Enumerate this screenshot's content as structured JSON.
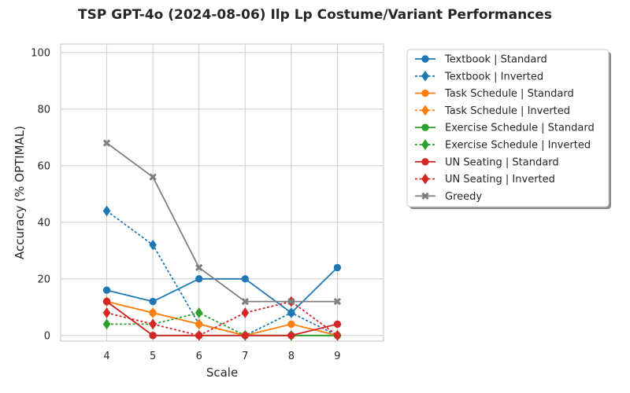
{
  "chart_data": {
    "type": "line",
    "title": "TSP GPT-4o (2024-08-06) Ilp Lp Costume/Variant Performances",
    "xlabel": "Scale",
    "ylabel": "Accuracy (% OPTIMAL)",
    "x": [
      4,
      5,
      6,
      7,
      8,
      9
    ],
    "xlim": [
      3,
      10
    ],
    "ylim": [
      -2,
      103
    ],
    "yticks": [
      0,
      20,
      40,
      60,
      80,
      100
    ],
    "grid": true,
    "legend_position": "outside-right-top",
    "series": [
      {
        "name": "Textbook | Standard",
        "color": "#1f77b4",
        "dash": "solid",
        "marker": "circle",
        "values": [
          16,
          12,
          20,
          20,
          8,
          24
        ]
      },
      {
        "name": "Textbook | Inverted",
        "color": "#1f77b4",
        "dash": "dotted",
        "marker": "diamond",
        "values": [
          44,
          32,
          4,
          0,
          8,
          0
        ]
      },
      {
        "name": "Task Schedule | Standard",
        "color": "#ff7f0e",
        "dash": "solid",
        "marker": "circle",
        "values": [
          12,
          8,
          4,
          0,
          4,
          0
        ]
      },
      {
        "name": "Task Schedule | Inverted",
        "color": "#ff7f0e",
        "dash": "dotted",
        "marker": "diamond",
        "values": [
          12,
          8,
          4,
          0,
          0,
          0
        ]
      },
      {
        "name": "Exercise Schedule | Standard",
        "color": "#2ca02c",
        "dash": "solid",
        "marker": "circle",
        "values": [
          12,
          0,
          0,
          0,
          0,
          0
        ]
      },
      {
        "name": "Exercise Schedule | Inverted",
        "color": "#2ca02c",
        "dash": "dotted",
        "marker": "diamond",
        "values": [
          4,
          4,
          8,
          0,
          0,
          0
        ]
      },
      {
        "name": "UN Seating | Standard",
        "color": "#d62728",
        "dash": "solid",
        "marker": "circle",
        "values": [
          12,
          0,
          0,
          0,
          0,
          4
        ]
      },
      {
        "name": "UN Seating | Inverted",
        "color": "#d62728",
        "dash": "dotted",
        "marker": "diamond",
        "values": [
          8,
          4,
          0,
          8,
          12,
          0
        ]
      },
      {
        "name": "Greedy",
        "color": "#7f7f7f",
        "dash": "solid",
        "marker": "x",
        "values": [
          68,
          56,
          24,
          12,
          12,
          12
        ]
      }
    ]
  }
}
